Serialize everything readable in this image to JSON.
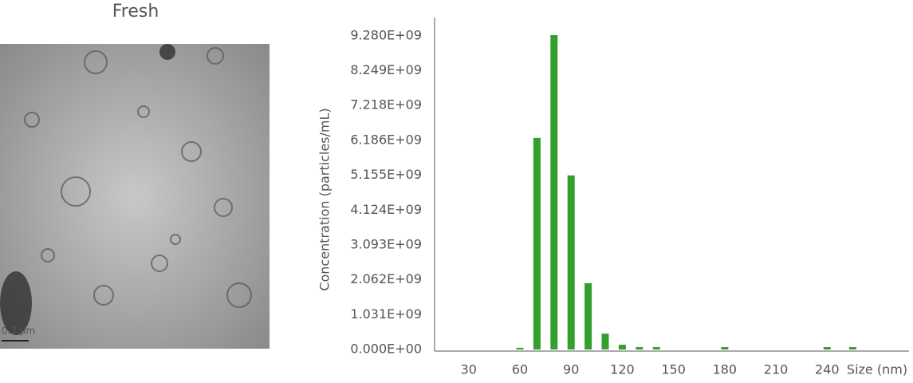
{
  "image": {
    "title": "Fresh",
    "scale_label": "0.2 μm"
  },
  "chart_data": {
    "type": "bar",
    "ylabel": "Concentration (particles/mL)",
    "xlabel": "Size (nm)",
    "color": "#33a02c",
    "x": [
      60,
      70,
      80,
      90,
      100,
      110,
      120,
      130,
      140,
      180,
      240,
      255
    ],
    "values": [
      50000000,
      6260000000,
      9300000000,
      5150000000,
      1960000000,
      470000000,
      140000000,
      70000000,
      70000000,
      70000000,
      70000000,
      70000000
    ],
    "xlim": [
      10,
      288
    ],
    "ylim": [
      0,
      9820000000
    ],
    "xticks": [
      30,
      60,
      90,
      120,
      150,
      180,
      210,
      240
    ],
    "yticks": [
      {
        "value": 0,
        "label": "0.000E+00"
      },
      {
        "value": 1031000000,
        "label": "1.031E+09"
      },
      {
        "value": 2062000000,
        "label": "2.062E+09"
      },
      {
        "value": 3093000000,
        "label": "3.093E+09"
      },
      {
        "value": 4124000000,
        "label": "4.124E+09"
      },
      {
        "value": 5155000000,
        "label": "5.155E+09"
      },
      {
        "value": 6186000000,
        "label": "6.186E+09"
      },
      {
        "value": 7218000000,
        "label": "7.218E+09"
      },
      {
        "value": 8249000000,
        "label": "8.249E+09"
      },
      {
        "value": 9280000000,
        "label": "9.280E+09"
      }
    ],
    "grid": false
  }
}
